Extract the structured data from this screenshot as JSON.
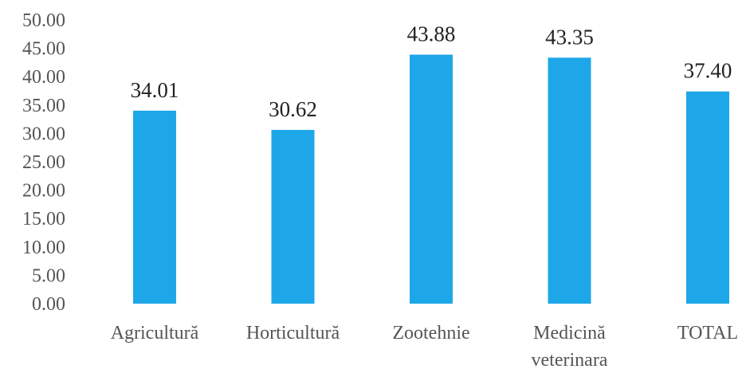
{
  "chart_data": {
    "type": "bar",
    "categories": [
      "Agricultură",
      "Horticultură",
      "Zootehnie",
      "Medicină veterinara",
      "TOTAL"
    ],
    "category_lines": [
      [
        "Agricultură"
      ],
      [
        "Horticultură"
      ],
      [
        "Zootehnie"
      ],
      [
        "Medicină",
        "veterinara"
      ],
      [
        "TOTAL"
      ]
    ],
    "values": [
      34.01,
      30.62,
      43.88,
      43.35,
      37.4
    ],
    "data_labels": [
      "34.01",
      "30.62",
      "43.88",
      "43.35",
      "37.40"
    ],
    "y_ticks": [
      "0.00",
      "5.00",
      "10.00",
      "15.00",
      "20.00",
      "25.00",
      "30.00",
      "35.00",
      "40.00",
      "45.00",
      "50.00"
    ],
    "ylim": [
      0,
      50
    ],
    "grid": false,
    "legend": "none",
    "bar_color": "#1ea7e8"
  }
}
